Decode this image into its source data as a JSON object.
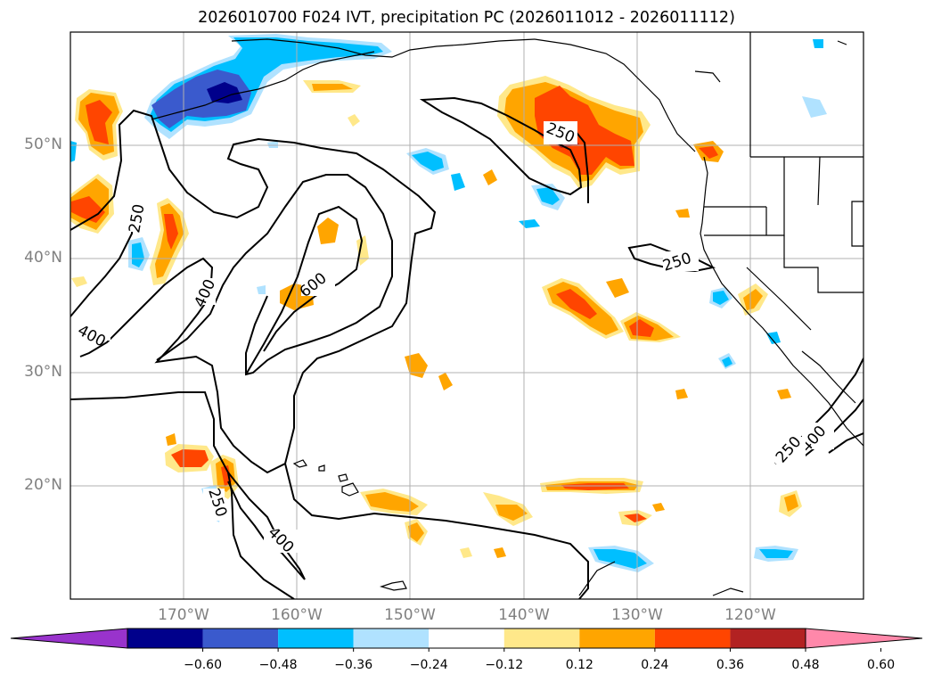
{
  "title": "2026010700 F024 IVT, precipitation PC (2026011012 - 2026011112)",
  "map": {
    "lat_labels": [
      "50°N",
      "40°N",
      "30°N",
      "20°N"
    ],
    "lon_labels": [
      "170°W",
      "160°W",
      "150°W",
      "140°W",
      "130°W",
      "120°W"
    ],
    "contour_labels": [
      "250",
      "400",
      "400",
      "600",
      "250",
      "250",
      "400",
      "250",
      "400",
      "250"
    ]
  },
  "colorbar": {
    "ticks": [
      "−0.60",
      "−0.48",
      "−0.36",
      "−0.24",
      "−0.12",
      "0.12",
      "0.24",
      "0.36",
      "0.48",
      "0.60"
    ],
    "colors": {
      "under": "#9933cc",
      "bins": [
        "#00008b",
        "#3a5acd",
        "#00bfff",
        "#b0e2ff",
        "#ffffff",
        "#ffe88a",
        "#ffa500",
        "#ff4500",
        "#b22222"
      ],
      "over": "#ff88aa"
    }
  },
  "colors": {
    "pos_low": "#ffe88a",
    "pos_mid": "#ffa500",
    "pos_high": "#ff4500",
    "pos_top": "#b22222",
    "neg_low": "#b0e2ff",
    "neg_mid": "#00bfff",
    "neg_high": "#3a5acd",
    "neg_top": "#00008b"
  }
}
